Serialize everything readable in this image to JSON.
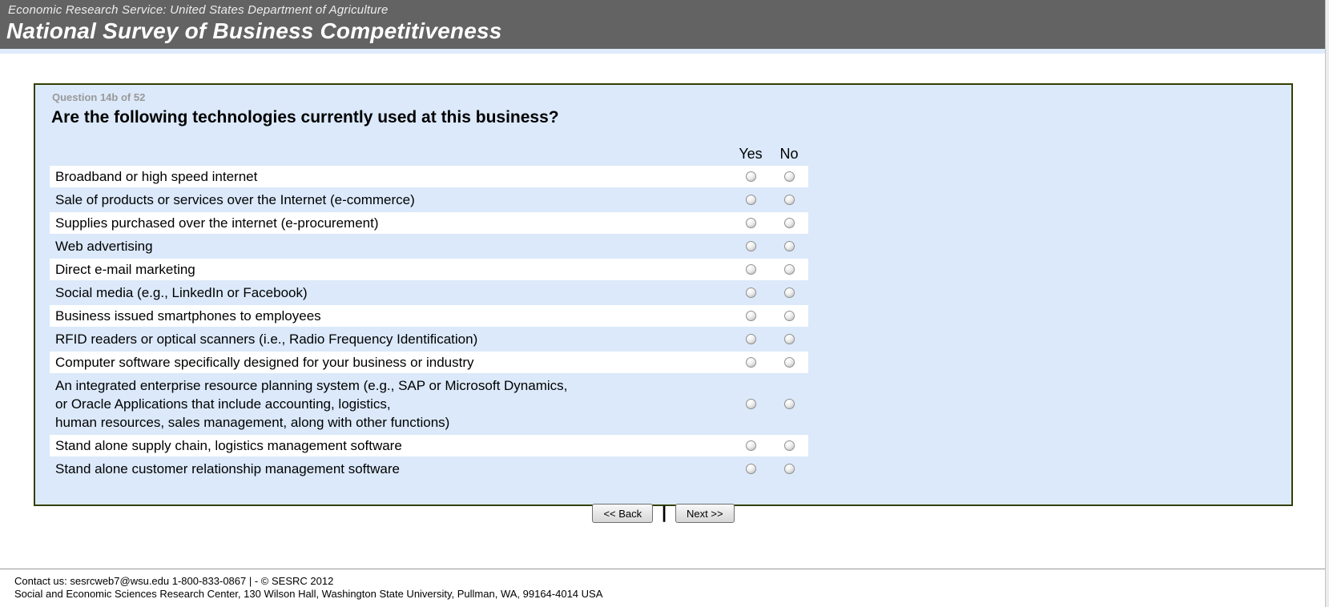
{
  "header": {
    "agency": "Economic Research Service: United States Department of Agriculture",
    "title": "National Survey of Business Competitiveness"
  },
  "survey": {
    "question_number": "Question 14b of 52",
    "question": "Are the following technologies currently used at this business?",
    "columns": {
      "yes": "Yes",
      "no": "No"
    },
    "items": [
      {
        "label": "Broadband or high speed internet",
        "yes_checked": false,
        "no_checked": false
      },
      {
        "label": "Sale of products or services over the Internet (e-commerce)",
        "yes_checked": false,
        "no_checked": false
      },
      {
        "label": "Supplies purchased over the internet (e-procurement)",
        "yes_checked": false,
        "no_checked": false
      },
      {
        "label": "Web advertising",
        "yes_checked": false,
        "no_checked": false
      },
      {
        "label": "Direct e-mail marketing",
        "yes_checked": false,
        "no_checked": false
      },
      {
        "label": "Social media (e.g., LinkedIn or Facebook)",
        "yes_checked": false,
        "no_checked": false
      },
      {
        "label": "Business issued smartphones to employees",
        "yes_checked": false,
        "no_checked": false
      },
      {
        "label": "RFID readers or optical scanners (i.e., Radio Frequency Identification)",
        "yes_checked": false,
        "no_checked": false
      },
      {
        "label": "Computer software specifically designed for your business or industry",
        "yes_checked": false,
        "no_checked": false
      },
      {
        "label": "An integrated enterprise resource planning system (e.g., SAP or Microsoft Dynamics,\nor Oracle Applications that include accounting, logistics,\nhuman resources, sales management, along with other functions)",
        "yes_checked": false,
        "no_checked": false
      },
      {
        "label": "Stand alone supply chain, logistics management software",
        "yes_checked": false,
        "no_checked": false
      },
      {
        "label": "Stand alone customer relationship management software",
        "yes_checked": false,
        "no_checked": false
      }
    ]
  },
  "buttons": {
    "back": "<< Back",
    "separator": "|",
    "next": "Next >>"
  },
  "footer": {
    "line1": "Contact us: sesrcweb7@wsu.edu 1-800-833-0867 | - © SESRC 2012",
    "line2": "Social and Economic Sciences Research Center, 130 Wilson Hall, Washington State University, Pullman, WA, 99164-4014 USA"
  },
  "colors": {
    "header_bg": "#636363",
    "accent_strip": "#dfeafb",
    "panel_bg": "#dbe9fa",
    "panel_border": "#333f02",
    "row_white": "#ffffff"
  }
}
